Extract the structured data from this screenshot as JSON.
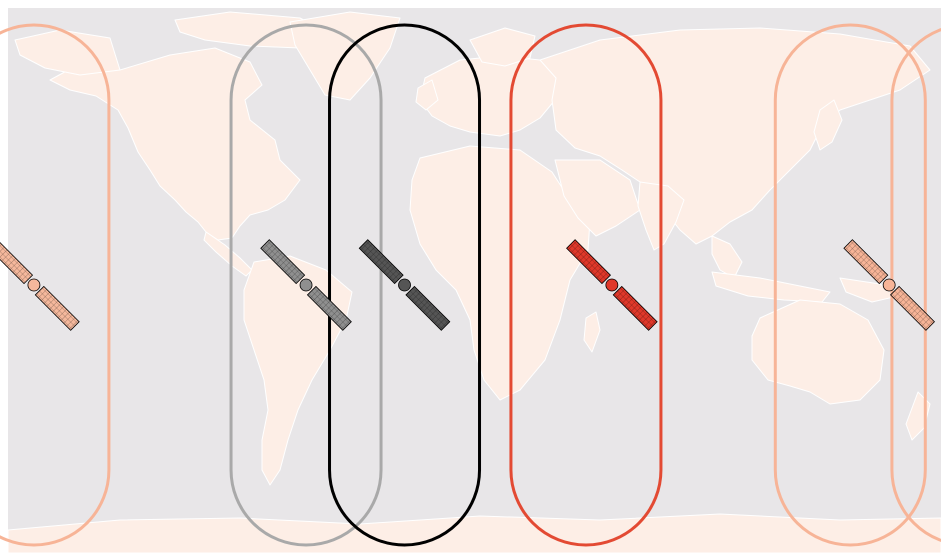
{
  "map": {
    "projection": "equirectangular",
    "ocean_color": "#e8e6e8",
    "land_color": "#fdeee6",
    "border_color": "#ffffff"
  },
  "satellites": [
    {
      "id": "sat-1",
      "lon": -170,
      "color": "#f2a98c",
      "body_color": "#f5b89c"
    },
    {
      "id": "sat-2",
      "lon": -65,
      "color": "#a9a9a9",
      "body_color": "#8f8f8f"
    },
    {
      "id": "sat-3",
      "lon": -27,
      "color": "#000000",
      "body_color": "#555555"
    },
    {
      "id": "sat-4",
      "lon": 53,
      "color": "#e34a33",
      "body_color": "#e0382a"
    },
    {
      "id": "sat-5",
      "lon": 160,
      "color": "#f7b497",
      "body_color": "#f7b497"
    }
  ],
  "coverage_footprints": [
    {
      "id": "footprint-1",
      "center_lon": -170,
      "color": "#f7b497",
      "wraps": true
    },
    {
      "id": "footprint-2",
      "center_lon": -65,
      "color": "#a9a9a9"
    },
    {
      "id": "footprint-3",
      "center_lon": -27,
      "color": "#000000"
    },
    {
      "id": "footprint-4",
      "center_lon": 43,
      "color": "#e34a33"
    },
    {
      "id": "footprint-5",
      "center_lon": 145,
      "color": "#f7b497"
    }
  ]
}
